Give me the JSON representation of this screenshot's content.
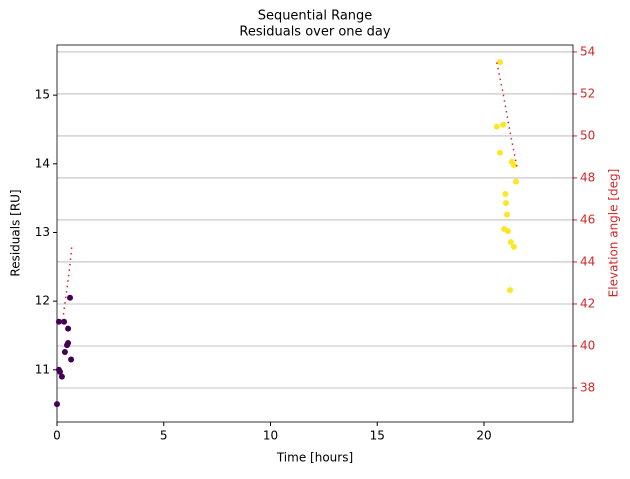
{
  "chart_data": {
    "type": "scatter",
    "title": "Sequential Range",
    "subtitle": "Residuals over one day",
    "x_label": "Time [hours]",
    "y_label": "Residuals [RU]",
    "y2_label": "Elevation angle [deg]",
    "xlim": [
      0,
      24.17
    ],
    "xticks": [
      0,
      5,
      10,
      15,
      20
    ],
    "ylim": [
      10.24,
      15.73
    ],
    "yticks": [
      11,
      12,
      13,
      14,
      15
    ],
    "y2lim": [
      36.38,
      54.33
    ],
    "y2ticks": [
      38,
      40,
      42,
      44,
      46,
      48,
      50,
      52,
      54
    ],
    "grid": "y2",
    "y2_color": "#d62728",
    "series": [
      {
        "color": "#440154",
        "style": "points",
        "x": [
          0,
          0.09,
          0.23,
          0.14,
          0.09,
          0.33,
          0.37,
          0.47,
          0.52,
          0.52,
          0.61,
          0.66
        ],
        "values": [
          10.5,
          11.0,
          10.9,
          10.97,
          11.7,
          11.7,
          11.26,
          11.36,
          11.39,
          11.6,
          12.05,
          11.15
        ]
      },
      {
        "color": "#fde725",
        "style": "points",
        "x": [
          20.75,
          20.6,
          20.9,
          20.75,
          21.3,
          21.4,
          21.5,
          21.0,
          21.03,
          21.08,
          20.94,
          21.12,
          21.26,
          21.4,
          21.22
        ],
        "values": [
          15.48,
          14.54,
          14.57,
          14.16,
          14.03,
          13.98,
          13.74,
          13.56,
          13.43,
          13.26,
          13.05,
          13.02,
          12.86,
          12.79,
          12.16
        ]
      },
      {
        "color": "#d62728",
        "style": "dotted",
        "axis": "y2",
        "x": [
          0.3,
          0.45,
          0.6,
          0.7
        ],
        "values": [
          41.5,
          42.6,
          43.8,
          44.8
        ]
      },
      {
        "color": "#d62728",
        "style": "dotted",
        "axis": "y2",
        "x": [
          20.6,
          20.9,
          21.2,
          21.55
        ],
        "values": [
          53.5,
          52.0,
          50.3,
          48.5
        ]
      }
    ]
  }
}
